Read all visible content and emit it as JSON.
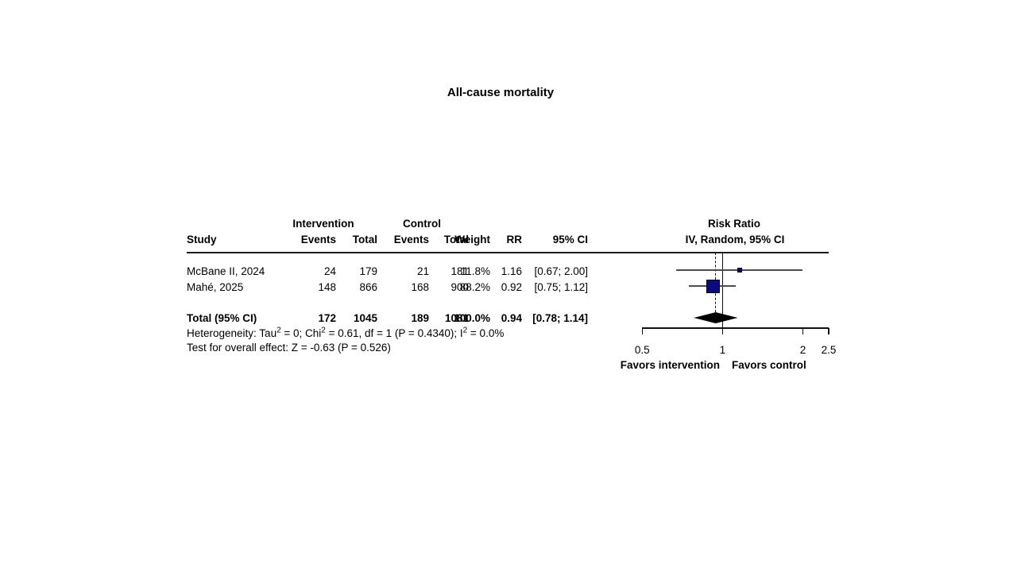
{
  "title": "All-cause mortality",
  "table": {
    "group_headers": {
      "intervention": "Intervention",
      "control": "Control"
    },
    "plot_headers": {
      "line1": "Risk Ratio",
      "line2": "IV, Random, 95% CI"
    },
    "col_headers": {
      "study": "Study",
      "events_i": "Events",
      "total_i": "Total",
      "events_c": "Events",
      "total_c": "Total",
      "weight": "Weight",
      "rr": "RR",
      "ci": "95% CI"
    },
    "rows": [
      {
        "study": "McBane II, 2024",
        "events_i": "24",
        "total_i": "179",
        "events_c": "21",
        "total_c": "181",
        "weight": "11.8%",
        "rr": "1.16",
        "ci": "[0.67; 2.00]"
      },
      {
        "study": "Mahé, 2025",
        "events_i": "148",
        "total_i": "866",
        "events_c": "168",
        "total_c": "900",
        "weight": "88.2%",
        "rr": "0.92",
        "ci": "[0.75; 1.12]"
      }
    ],
    "total_row": {
      "study": "Total (95% CI)",
      "events_i": "172",
      "total_i": "1045",
      "events_c": "189",
      "total_c": "1081",
      "weight": "100.0%",
      "rr": "0.94",
      "ci": "[0.78; 1.14]"
    },
    "heterogeneity": {
      "pre": "Heterogeneity: Tau",
      "sup1": "2",
      "mid1": " = 0; Chi",
      "sup2": "2",
      "mid2": " = 0.61, df = 1 (P = 0.4340); I",
      "sup3": "2",
      "post": " = 0.0%"
    },
    "overall_test": "Test for overall effect: Z = -0.63 (P = 0.526)"
  },
  "footer": {
    "favors_left": "Favors intervention",
    "favors_right": "Favors control"
  },
  "colors": {
    "square": "#0b0b7d",
    "diamond": "#000000",
    "ci_line": "#4d4d4d",
    "axis": "#111111"
  },
  "chart_data": {
    "type": "forest",
    "title": "All-cause mortality",
    "effect_measure": "Risk Ratio",
    "model": "IV, Random, 95% CI",
    "x_axis": {
      "scale": "log",
      "min": 0.5,
      "max": 2.5,
      "ticks": [
        0.5,
        1,
        2,
        2.5
      ],
      "ref_line": 1
    },
    "studies": [
      {
        "name": "McBane II, 2024",
        "events_intervention": 24,
        "total_intervention": 179,
        "events_control": 21,
        "total_control": 181,
        "weight_pct": 11.8,
        "rr": 1.16,
        "ci_low": 0.67,
        "ci_high": 2.0
      },
      {
        "name": "Mahé, 2025",
        "events_intervention": 148,
        "total_intervention": 866,
        "events_control": 168,
        "total_control": 900,
        "weight_pct": 88.2,
        "rr": 0.92,
        "ci_low": 0.75,
        "ci_high": 1.12
      }
    ],
    "pooled": {
      "label": "Total (95% CI)",
      "events_intervention": 172,
      "total_intervention": 1045,
      "events_control": 189,
      "total_control": 1081,
      "weight_pct": 100.0,
      "rr": 0.94,
      "ci_low": 0.78,
      "ci_high": 1.14
    },
    "heterogeneity": {
      "tau2": 0,
      "chi2": 0.61,
      "df": 1,
      "p": 0.434,
      "i2_pct": 0.0
    },
    "overall_effect": {
      "z": -0.63,
      "p": 0.526
    }
  }
}
